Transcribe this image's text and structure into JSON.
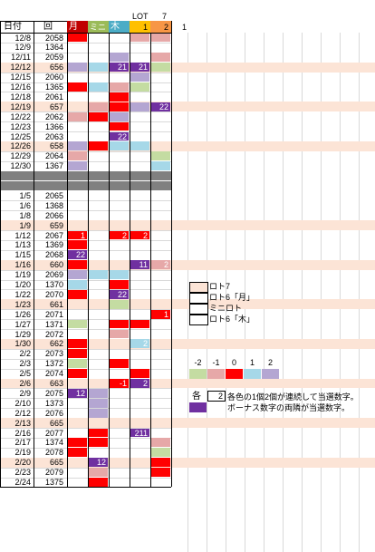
{
  "colors": {
    "red": "#ff0000",
    "pink": "#e6a8a8",
    "lightblue": "#a6d8e8",
    "lavender": "#b4a6d2",
    "purple": "#7030a0",
    "green": "#c4dca2",
    "peach": "#fce4d6",
    "gray": "#808080",
    "head_mon": "#c00000",
    "head_mini": "#9bbb59",
    "head_thu": "#4bacc6",
    "head_lot1": "#ffc000",
    "head_lot2": "#f79646"
  },
  "header": {
    "lot_label": "LOT",
    "seven": "7",
    "date_col": "日付",
    "round_col": "回",
    "mon": "月",
    "mini": "ミニ",
    "thu": "木",
    "one": "1",
    "two": "2",
    "extra_one": "1"
  },
  "rows": [
    {
      "d": "12/8",
      "r": "2058",
      "cells": [
        "red",
        "",
        "",
        "pink",
        "pink"
      ],
      "shade": false
    },
    {
      "d": "12/9",
      "r": "1364",
      "cells": [
        "",
        "",
        "",
        "",
        ""
      ],
      "shade": false
    },
    {
      "d": "12/11",
      "r": "2059",
      "cells": [
        "",
        "",
        "lavender",
        "",
        "pink"
      ],
      "shade": false
    },
    {
      "d": "12/12",
      "r": "656",
      "cells": [
        "lavender",
        "lightblue",
        "purple",
        "purple",
        "green"
      ],
      "nums": [
        "",
        "",
        "21",
        "21",
        ""
      ],
      "shade": true
    },
    {
      "d": "12/15",
      "r": "2060",
      "cells": [
        "",
        "",
        "",
        "lavender",
        ""
      ],
      "shade": false
    },
    {
      "d": "12/16",
      "r": "1365",
      "cells": [
        "red",
        "lightblue",
        "pink",
        "green",
        ""
      ],
      "shade": false
    },
    {
      "d": "12/18",
      "r": "2061",
      "cells": [
        "",
        "",
        "red",
        "",
        ""
      ],
      "shade": false
    },
    {
      "d": "12/19",
      "r": "657",
      "cells": [
        "",
        "pink",
        "red",
        "lavender",
        "purple"
      ],
      "nums": [
        "",
        "",
        "",
        "",
        "22"
      ],
      "shade": true
    },
    {
      "d": "12/22",
      "r": "2062",
      "cells": [
        "pink",
        "red",
        "lavender",
        "",
        ""
      ],
      "shade": false
    },
    {
      "d": "12/23",
      "r": "1366",
      "cells": [
        "",
        "",
        "red",
        "",
        ""
      ],
      "shade": false
    },
    {
      "d": "12/25",
      "r": "2063",
      "cells": [
        "",
        "",
        "purple",
        "",
        ""
      ],
      "nums": [
        "",
        "",
        "22",
        "",
        ""
      ],
      "shade": false
    },
    {
      "d": "12/26",
      "r": "658",
      "cells": [
        "lavender",
        "red",
        "lightblue",
        "lightblue",
        ""
      ],
      "shade": true
    },
    {
      "d": "12/29",
      "r": "2064",
      "cells": [
        "pink",
        "",
        "",
        "",
        "green"
      ],
      "shade": false
    },
    {
      "d": "12/30",
      "r": "1367",
      "cells": [
        "lavender",
        "",
        "",
        "",
        "lightblue"
      ],
      "shade": false
    },
    {
      "gap": true
    },
    {
      "gap": true
    },
    {
      "d": "1/5",
      "r": "2065",
      "cells": [
        "",
        "",
        "",
        "",
        ""
      ],
      "shade": false
    },
    {
      "d": "1/6",
      "r": "1368",
      "cells": [
        "",
        "",
        "",
        "",
        ""
      ],
      "shade": false
    },
    {
      "d": "1/8",
      "r": "2066",
      "cells": [
        "",
        "",
        "",
        "",
        ""
      ],
      "shade": false
    },
    {
      "d": "1/9",
      "r": "659",
      "cells": [
        "",
        "",
        "",
        "",
        ""
      ],
      "shade": true
    },
    {
      "d": "1/12",
      "r": "2067",
      "cells": [
        "red",
        "",
        "red",
        "red",
        ""
      ],
      "nums": [
        "1",
        "",
        "2",
        "2",
        ""
      ],
      "shade": false
    },
    {
      "d": "1/13",
      "r": "1369",
      "cells": [
        "red",
        "",
        "",
        "",
        ""
      ],
      "shade": false
    },
    {
      "d": "1/15",
      "r": "2068",
      "cells": [
        "purple",
        "",
        "",
        "",
        ""
      ],
      "nums": [
        "22",
        "",
        "",
        "",
        ""
      ],
      "shade": false
    },
    {
      "d": "1/16",
      "r": "660",
      "cells": [
        "red",
        "",
        "",
        "purple",
        "pink"
      ],
      "nums": [
        "",
        "",
        "",
        "11",
        "2"
      ],
      "shade": true
    },
    {
      "d": "1/19",
      "r": "2069",
      "cells": [
        "lavender",
        "lightblue",
        "lightblue",
        "",
        ""
      ],
      "shade": false
    },
    {
      "d": "1/20",
      "r": "1370",
      "cells": [
        "lightblue",
        "",
        "red",
        "",
        ""
      ],
      "shade": false
    },
    {
      "d": "1/22",
      "r": "2070",
      "cells": [
        "red",
        "",
        "purple",
        "",
        ""
      ],
      "nums": [
        "",
        "",
        "22",
        "",
        ""
      ],
      "shade": false
    },
    {
      "d": "1/23",
      "r": "661",
      "cells": [
        "",
        "",
        "green",
        "",
        ""
      ],
      "shade": true
    },
    {
      "d": "1/26",
      "r": "2071",
      "cells": [
        "",
        "",
        "",
        "",
        "red"
      ],
      "nums": [
        "",
        "",
        "",
        "",
        "1"
      ],
      "shade": false
    },
    {
      "d": "1/27",
      "r": "1371",
      "cells": [
        "green",
        "",
        "red",
        "red",
        ""
      ],
      "shade": false
    },
    {
      "d": "1/29",
      "r": "2072",
      "cells": [
        "",
        "",
        "pink",
        "",
        ""
      ],
      "shade": false
    },
    {
      "d": "1/30",
      "r": "662",
      "cells": [
        "red",
        "",
        "",
        "lightblue",
        ""
      ],
      "nums": [
        "",
        "",
        "",
        "2",
        ""
      ],
      "shade": true
    },
    {
      "d": "2/2",
      "r": "2073",
      "cells": [
        "red",
        "",
        "",
        "",
        ""
      ],
      "shade": false
    },
    {
      "d": "2/3",
      "r": "1372",
      "cells": [
        "green",
        "",
        "red",
        "",
        ""
      ],
      "shade": false
    },
    {
      "d": "2/5",
      "r": "2074",
      "cells": [
        "red",
        "",
        "",
        "red",
        ""
      ],
      "shade": false
    },
    {
      "d": "2/6",
      "r": "663",
      "cells": [
        "",
        "",
        "red",
        "purple",
        ""
      ],
      "nums": [
        "",
        "",
        "-1",
        "2",
        ""
      ],
      "shade": true
    },
    {
      "d": "2/9",
      "r": "2075",
      "cells": [
        "purple",
        "lavender",
        "",
        "",
        ""
      ],
      "nums": [
        "12",
        "",
        "",
        "",
        ""
      ],
      "shade": false
    },
    {
      "d": "2/10",
      "r": "1373",
      "cells": [
        "",
        "lavender",
        "",
        "",
        ""
      ],
      "shade": false
    },
    {
      "d": "2/12",
      "r": "2076",
      "cells": [
        "",
        "lavender",
        "",
        "",
        ""
      ],
      "shade": false
    },
    {
      "d": "2/13",
      "r": "665",
      "cells": [
        "",
        "",
        "",
        "",
        ""
      ],
      "shade": true
    },
    {
      "d": "2/16",
      "r": "2077",
      "cells": [
        "",
        "red",
        "",
        "purple",
        ""
      ],
      "nums": [
        "",
        "",
        "",
        "211",
        ""
      ],
      "shade": false
    },
    {
      "d": "2/17",
      "r": "1374",
      "cells": [
        "red",
        "red",
        "",
        "",
        "pink"
      ],
      "shade": false
    },
    {
      "d": "2/19",
      "r": "2078",
      "cells": [
        "red",
        "",
        "",
        "",
        "green"
      ],
      "shade": false
    },
    {
      "d": "2/20",
      "r": "665",
      "cells": [
        "",
        "purple",
        "",
        "",
        "red"
      ],
      "nums": [
        "",
        "12",
        "",
        "",
        ""
      ],
      "shade": true
    },
    {
      "d": "2/23",
      "r": "2079",
      "cells": [
        "",
        "pink",
        "",
        "",
        "red"
      ],
      "shade": false
    },
    {
      "d": "2/24",
      "r": "1375",
      "cells": [
        "",
        "red",
        "",
        "",
        ""
      ],
      "shade": false
    }
  ],
  "legend": {
    "items": [
      "ロト7",
      "ロト6「月」",
      "ミニロト",
      "ロト6「木」"
    ],
    "scale_labels": [
      "-2",
      "-1",
      "0",
      "1",
      "2"
    ],
    "scale_colors": [
      "#c4dca2",
      "#e6a8a8",
      "#ff0000",
      "#a6d8e8",
      "#b4a6d2"
    ],
    "each_label": "各",
    "each_value": "2",
    "note1": "各色の1個2個が連続して当選数字。",
    "note2": "ボーナス数字の両隣が当選数字。"
  }
}
